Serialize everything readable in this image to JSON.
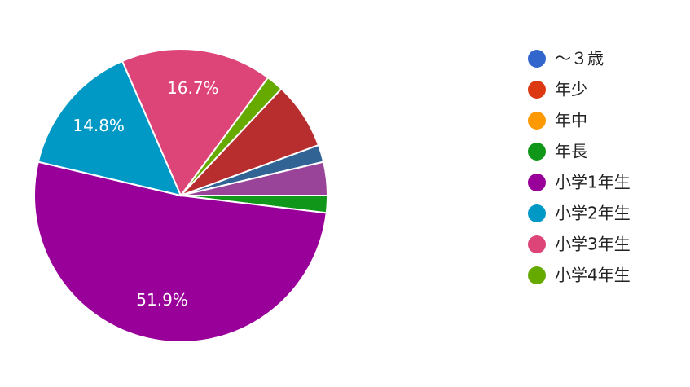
{
  "chart_data": {
    "type": "pie",
    "categories": [
      "〜３歳",
      "年少",
      "年中",
      "年長",
      "小学1年生",
      "小学2年生",
      "小学3年生",
      "小学4年生",
      null,
      null,
      null
    ],
    "values": [
      0,
      0,
      0,
      1.9,
      51.9,
      14.8,
      16.7,
      1.9,
      7.4,
      1.9,
      3.7
    ],
    "value_labels": [
      null,
      null,
      null,
      null,
      "51.9%",
      "14.8%",
      "16.7%",
      null,
      null,
      null,
      null
    ],
    "colors": [
      "#3366cc",
      "#dc3912",
      "#ff9900",
      "#109618",
      "#990099",
      "#0099c6",
      "#dd4477",
      "#66aa00",
      "#b82e2e",
      "#316395",
      "#994499"
    ],
    "legend": "right"
  }
}
